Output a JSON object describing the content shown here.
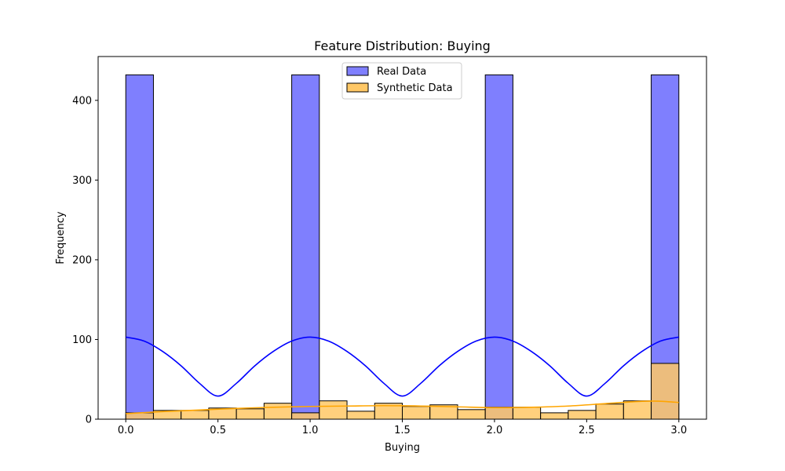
{
  "chart_data": {
    "type": "bar",
    "title": "Feature Distribution: Buying",
    "xlabel": "Buying",
    "ylabel": "Frequency",
    "xlim": [
      -0.15,
      3.15
    ],
    "ylim": [
      0,
      455
    ],
    "xticks": [
      0.0,
      0.5,
      1.0,
      1.5,
      2.0,
      2.5,
      3.0
    ],
    "xtick_labels": [
      "0.0",
      "0.5",
      "1.0",
      "1.5",
      "2.0",
      "2.5",
      "3.0"
    ],
    "yticks": [
      0,
      100,
      200,
      300,
      400
    ],
    "ytick_labels": [
      "0",
      "100",
      "200",
      "300",
      "400"
    ],
    "legend_position": "top-center",
    "series": [
      {
        "name": "Real Data",
        "color": "#7f7ffe",
        "edge": "#000000",
        "kde_color": "#0000ff",
        "bin_width": 0.15,
        "bins": [
          {
            "x": 0.0,
            "value": 432
          },
          {
            "x": 0.9,
            "value": 432
          },
          {
            "x": 1.95,
            "value": 432
          },
          {
            "x": 2.85,
            "value": 432
          }
        ],
        "kde": [
          [
            0.0,
            103
          ],
          [
            0.1,
            98
          ],
          [
            0.2,
            85
          ],
          [
            0.3,
            67
          ],
          [
            0.4,
            45
          ],
          [
            0.5,
            29
          ],
          [
            0.6,
            45
          ],
          [
            0.7,
            67
          ],
          [
            0.8,
            85
          ],
          [
            0.9,
            98
          ],
          [
            1.0,
            103
          ],
          [
            1.1,
            98
          ],
          [
            1.2,
            85
          ],
          [
            1.3,
            67
          ],
          [
            1.4,
            45
          ],
          [
            1.5,
            29
          ],
          [
            1.6,
            45
          ],
          [
            1.7,
            67
          ],
          [
            1.8,
            85
          ],
          [
            1.9,
            98
          ],
          [
            2.0,
            103
          ],
          [
            2.1,
            98
          ],
          [
            2.2,
            85
          ],
          [
            2.3,
            67
          ],
          [
            2.4,
            45
          ],
          [
            2.5,
            29
          ],
          [
            2.6,
            45
          ],
          [
            2.7,
            67
          ],
          [
            2.8,
            85
          ],
          [
            2.9,
            98
          ],
          [
            3.0,
            103
          ]
        ]
      },
      {
        "name": "Synthetic Data",
        "color": "#ffc866",
        "edge": "#000000",
        "kde_color": "#ffa500",
        "bin_width": 0.15,
        "bins": [
          {
            "x": 0.0,
            "value": 8
          },
          {
            "x": 0.15,
            "value": 11
          },
          {
            "x": 0.3,
            "value": 11
          },
          {
            "x": 0.45,
            "value": 14
          },
          {
            "x": 0.6,
            "value": 13
          },
          {
            "x": 0.75,
            "value": 20
          },
          {
            "x": 0.9,
            "value": 8
          },
          {
            "x": 1.05,
            "value": 23
          },
          {
            "x": 1.2,
            "value": 10
          },
          {
            "x": 1.35,
            "value": 20
          },
          {
            "x": 1.5,
            "value": 16
          },
          {
            "x": 1.65,
            "value": 18
          },
          {
            "x": 1.8,
            "value": 12
          },
          {
            "x": 1.95,
            "value": 15
          },
          {
            "x": 2.1,
            "value": 15
          },
          {
            "x": 2.25,
            "value": 8
          },
          {
            "x": 2.4,
            "value": 11
          },
          {
            "x": 2.55,
            "value": 19
          },
          {
            "x": 2.7,
            "value": 23
          },
          {
            "x": 2.85,
            "value": 70
          }
        ],
        "kde": [
          [
            0.0,
            7
          ],
          [
            0.2,
            9.5
          ],
          [
            0.4,
            11.5
          ],
          [
            0.6,
            13.5
          ],
          [
            0.8,
            15
          ],
          [
            1.0,
            16
          ],
          [
            1.2,
            16.5
          ],
          [
            1.4,
            17
          ],
          [
            1.6,
            16.5
          ],
          [
            1.8,
            15.5
          ],
          [
            2.0,
            14.5
          ],
          [
            2.2,
            15
          ],
          [
            2.4,
            16.5
          ],
          [
            2.6,
            19.5
          ],
          [
            2.8,
            22.5
          ],
          [
            2.9,
            22.5
          ],
          [
            3.0,
            21
          ]
        ]
      }
    ]
  }
}
